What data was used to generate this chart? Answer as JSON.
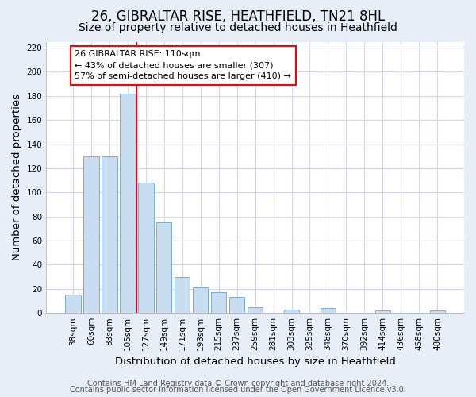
{
  "title": "26, GIBRALTAR RISE, HEATHFIELD, TN21 8HL",
  "subtitle": "Size of property relative to detached houses in Heathfield",
  "xlabel": "Distribution of detached houses by size in Heathfield",
  "ylabel": "Number of detached properties",
  "bar_labels": [
    "38sqm",
    "60sqm",
    "83sqm",
    "105sqm",
    "127sqm",
    "149sqm",
    "171sqm",
    "193sqm",
    "215sqm",
    "237sqm",
    "259sqm",
    "281sqm",
    "303sqm",
    "325sqm",
    "348sqm",
    "370sqm",
    "392sqm",
    "414sqm",
    "436sqm",
    "458sqm",
    "480sqm"
  ],
  "bar_values": [
    15,
    130,
    130,
    182,
    108,
    75,
    30,
    21,
    17,
    13,
    5,
    0,
    3,
    0,
    4,
    0,
    0,
    2,
    0,
    0,
    2
  ],
  "bar_color": "#c8ddf0",
  "bar_edge_color": "#7aaed4",
  "vline_x_index": 3.5,
  "vline_color": "red",
  "annotation_text": "26 GIBRALTAR RISE: 110sqm\n← 43% of detached houses are smaller (307)\n57% of semi-detached houses are larger (410) →",
  "annotation_box_color": "white",
  "annotation_box_edge_color": "red",
  "ylim": [
    0,
    225
  ],
  "yticks": [
    0,
    20,
    40,
    60,
    80,
    100,
    120,
    140,
    160,
    180,
    200,
    220
  ],
  "footer1": "Contains HM Land Registry data © Crown copyright and database right 2024.",
  "footer2": "Contains public sector information licensed under the Open Government Licence v3.0.",
  "fig_background_color": "#e8eef8",
  "plot_background_color": "white",
  "grid_color": "#d0d8e8",
  "title_fontsize": 12,
  "subtitle_fontsize": 10,
  "axis_label_fontsize": 9.5,
  "tick_fontsize": 7.5,
  "footer_fontsize": 7,
  "annot_fontsize": 8
}
